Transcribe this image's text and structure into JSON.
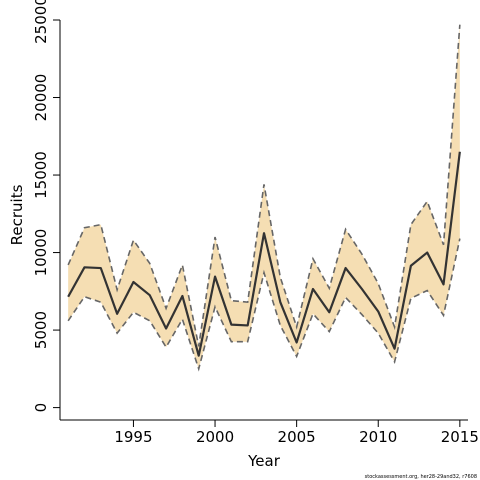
{
  "chart_data": {
    "type": "area",
    "xlabel": "Year",
    "ylabel": "Recruits",
    "xlim": [
      1990.5,
      2015.5
    ],
    "ylim": [
      -800,
      25000
    ],
    "x_ticks": [
      "1995",
      "2000",
      "2005",
      "2010",
      "2015"
    ],
    "y_ticks": [
      "0",
      "5000",
      "10000",
      "15000",
      "20000",
      "25000"
    ],
    "x": [
      1991,
      1992,
      1993,
      1994,
      1995,
      1996,
      1997,
      1998,
      1999,
      2000,
      2001,
      2002,
      2003,
      2004,
      2005,
      2006,
      2007,
      2008,
      2009,
      2010,
      2011,
      2012,
      2013,
      2014,
      2015
    ],
    "series": [
      {
        "values": [
          7150,
          9050,
          9000,
          6050,
          8100,
          7250,
          5100,
          7200,
          3350,
          8450,
          5350,
          5300,
          11250,
          6800,
          4200,
          7650,
          6150,
          9000,
          7650,
          6200,
          3800,
          9150,
          10000,
          7950,
          16500
        ]
      }
    ],
    "upper": [
      9200,
      11600,
      11800,
      7600,
      10800,
      9300,
      6400,
      9200,
      3950,
      11000,
      6900,
      6800,
      14400,
      8400,
      5200,
      9600,
      7700,
      11500,
      9900,
      8000,
      5200,
      11800,
      13300,
      10500,
      24700
    ],
    "lower": [
      5600,
      7150,
      6800,
      4800,
      6150,
      5600,
      3900,
      5700,
      2500,
      6500,
      4250,
      4250,
      8700,
      5300,
      3300,
      6050,
      4900,
      7100,
      6000,
      4800,
      2950,
      7050,
      7550,
      5950,
      10900
    ],
    "colors": {
      "band": "#f5deb3",
      "bound": "#666666",
      "line": "#333333",
      "axis": "#000000"
    }
  },
  "footnote": "stockassessment.org, her28-29and32, r7608"
}
